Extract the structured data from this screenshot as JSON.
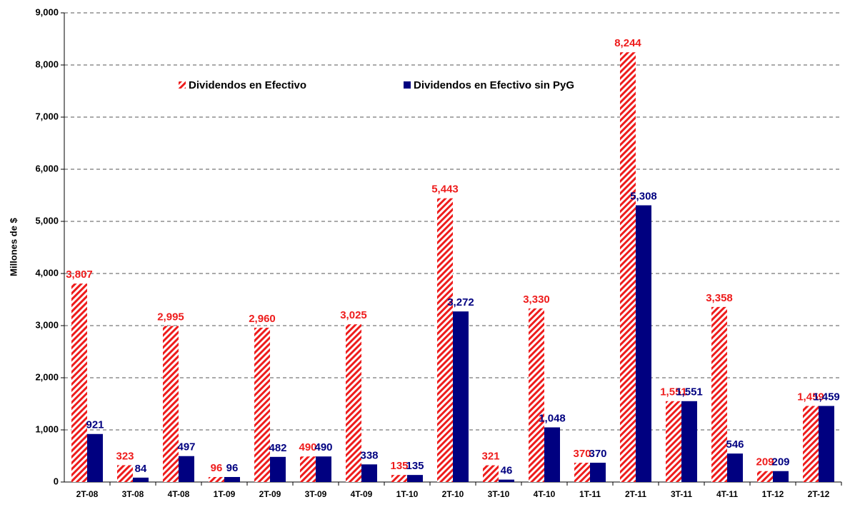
{
  "chart_data": {
    "type": "bar",
    "y_label": "Millones de $",
    "categories": [
      "2T-08",
      "3T-08",
      "4T-08",
      "1T-09",
      "2T-09",
      "3T-09",
      "4T-09",
      "1T-10",
      "2T-10",
      "3T-10",
      "4T-10",
      "1T-11",
      "2T-11",
      "3T-11",
      "4T-11",
      "1T-12",
      "2T-12"
    ],
    "series": [
      {
        "name": "Dividendos en Efectivo",
        "color": "#ee1c1c",
        "pattern": "hatch",
        "values": [
          3807,
          323,
          2995,
          96,
          2960,
          490,
          3025,
          135,
          5443,
          321,
          3330,
          370,
          8244,
          1551,
          3358,
          209,
          1459
        ],
        "value_labels": [
          "3,807",
          "323",
          "2,995",
          "96",
          "2,960",
          "490",
          "3,025",
          "135",
          "5,443",
          "321",
          "3,330",
          "370",
          "8,244",
          "1,551",
          "3,358",
          "209",
          "1,459"
        ]
      },
      {
        "name": "Dividendos en Efectivo sin PyG",
        "color": "#000080",
        "values": [
          921,
          84,
          497,
          96,
          482,
          490,
          338,
          135,
          3272,
          46,
          1048,
          370,
          5308,
          1551,
          546,
          209,
          1459
        ],
        "value_labels": [
          "921",
          "84",
          "497",
          "96",
          "482",
          "490",
          "338",
          "135",
          "3,272",
          "46",
          "1,048",
          "370",
          "5,308",
          "1,551",
          "546",
          "209",
          "1,459"
        ]
      }
    ],
    "ylim": [
      0,
      9000
    ],
    "yticks": [
      0,
      {
        "value": 1000,
        "label": "1,000"
      },
      {
        "value": 2000,
        "label": "2,000"
      },
      {
        "value": 3000,
        "label": "3,000"
      },
      {
        "value": 4000,
        "label": "4,000"
      },
      {
        "value": 5000,
        "label": "5,000"
      },
      {
        "value": 6000,
        "label": "6,000"
      },
      {
        "value": 7000,
        "label": "7,000"
      },
      {
        "value": 8000,
        "label": "8,000"
      },
      {
        "value": 9000,
        "label": "9,000"
      }
    ],
    "grid": true
  }
}
